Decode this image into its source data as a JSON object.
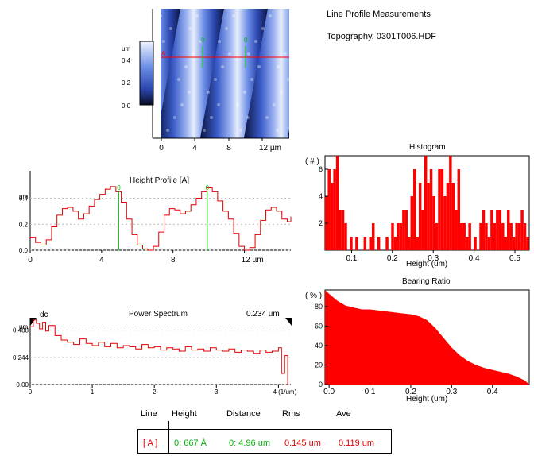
{
  "header": {
    "title": "Line Profile Measurements",
    "subtitle": "Topography,  0301T006.HDF"
  },
  "afm_image": {
    "colorbar_unit": "um",
    "colorbar_ticks": [
      "0.4",
      "0.2",
      "0.0"
    ],
    "x_ticks": [
      "0",
      "4",
      "8",
      "12 µm"
    ],
    "line_label": "A",
    "cursor_label": "0",
    "colors": {
      "dark": "#0b1440",
      "mid": "#4a6fd6",
      "light": "#e8eefc"
    }
  },
  "height_profile": {
    "title": "Height Profile [A]",
    "y_unit": "um",
    "cursor_label": "0",
    "chart_data": {
      "type": "line",
      "xlabel": "",
      "ylabel": "um",
      "xlim": [
        0,
        14.6
      ],
      "ylim": [
        0,
        0.55
      ],
      "x_ticks": [
        "0",
        "4",
        "8",
        "12 µm"
      ],
      "y_ticks": [
        "0.4",
        "0.2",
        "0.0"
      ],
      "cursors_x": [
        4.96,
        9.92
      ],
      "x": [
        0,
        0.3,
        0.6,
        0.9,
        1.2,
        1.5,
        1.8,
        2.1,
        2.4,
        2.7,
        3.0,
        3.3,
        3.6,
        3.9,
        4.2,
        4.5,
        4.8,
        5.1,
        5.4,
        5.7,
        6.0,
        6.3,
        6.6,
        6.9,
        7.2,
        7.5,
        7.8,
        8.1,
        8.4,
        8.7,
        9.0,
        9.3,
        9.6,
        9.9,
        10.2,
        10.5,
        10.8,
        11.1,
        11.4,
        11.7,
        12.0,
        12.3,
        12.6,
        12.9,
        13.2,
        13.5,
        13.8,
        14.1,
        14.4,
        14.6
      ],
      "y": [
        0.1,
        0.06,
        0.04,
        0.08,
        0.18,
        0.27,
        0.32,
        0.33,
        0.3,
        0.24,
        0.28,
        0.34,
        0.39,
        0.43,
        0.47,
        0.49,
        0.45,
        0.37,
        0.24,
        0.12,
        0.04,
        0.01,
        0.0,
        0.03,
        0.14,
        0.27,
        0.32,
        0.31,
        0.28,
        0.3,
        0.35,
        0.4,
        0.45,
        0.48,
        0.45,
        0.38,
        0.3,
        0.24,
        0.13,
        0.03,
        0.0,
        0.02,
        0.12,
        0.23,
        0.31,
        0.33,
        0.3,
        0.24,
        0.22,
        0.26
      ]
    }
  },
  "histogram": {
    "title": "Histogram",
    "chart_data": {
      "type": "bar",
      "xlabel": "Height (um)",
      "ylabel": "( # )",
      "xlim": [
        0.035,
        0.535
      ],
      "ylim": [
        0,
        7
      ],
      "x_ticks": [
        "0.1",
        "0.2",
        "0.3",
        "0.4",
        "0.5"
      ],
      "y_ticks": [
        "6",
        "4",
        "2"
      ],
      "bin_start": 0.035,
      "bin_width": 0.00675,
      "values": [
        4,
        6,
        5,
        6,
        7,
        3,
        3,
        2,
        0,
        1,
        0,
        1,
        0,
        0,
        1,
        0,
        1,
        2,
        0,
        1,
        0,
        0,
        1,
        0,
        2,
        1,
        2,
        2,
        3,
        3,
        1,
        4,
        6,
        1,
        5,
        3,
        7,
        5,
        6,
        4,
        2,
        6,
        6,
        4,
        5,
        7,
        5,
        3,
        6,
        2,
        2,
        1,
        2,
        0,
        1,
        0,
        2,
        3,
        2,
        1,
        3,
        2,
        3,
        3,
        2,
        1,
        3,
        2,
        1,
        2,
        2,
        3,
        2,
        1
      ]
    }
  },
  "bearing_ratio": {
    "title": "Bearing Ratio",
    "chart_data": {
      "type": "area",
      "xlabel": "Height (um)",
      "ylabel": "( % )",
      "xlim": [
        -0.01,
        0.49
      ],
      "ylim": [
        0,
        97
      ],
      "x_ticks": [
        "0.0",
        "0.1",
        "0.2",
        "0.3",
        "0.4"
      ],
      "y_ticks": [
        "80",
        "60",
        "40",
        "20",
        "0"
      ],
      "x": [
        -0.01,
        0.0,
        0.02,
        0.04,
        0.06,
        0.08,
        0.1,
        0.12,
        0.14,
        0.16,
        0.18,
        0.2,
        0.22,
        0.24,
        0.26,
        0.28,
        0.3,
        0.32,
        0.34,
        0.36,
        0.38,
        0.4,
        0.42,
        0.44,
        0.46,
        0.48,
        0.49
      ],
      "y": [
        97,
        93,
        86,
        81,
        79,
        77,
        77,
        76,
        75,
        74,
        73,
        72,
        70,
        66,
        58,
        48,
        38,
        30,
        24,
        20,
        17,
        15,
        13,
        11,
        8,
        4,
        0
      ]
    }
  },
  "power_spectrum": {
    "title": "Power Spectrum",
    "value_label": "0.234 um",
    "dc_label": "dc",
    "y_unit": "um",
    "chart_data": {
      "type": "line",
      "xlabel": "",
      "ylabel": "um",
      "xlim": [
        0,
        4.2
      ],
      "ylim": [
        0,
        0.6
      ],
      "x_ticks": [
        "0",
        "1",
        "2",
        "3",
        "4 (1/um)"
      ],
      "y_ticks": [
        "0.488",
        "0.244",
        "0.00"
      ],
      "x": [
        0.0,
        0.05,
        0.1,
        0.15,
        0.2,
        0.25,
        0.3,
        0.4,
        0.5,
        0.6,
        0.7,
        0.8,
        0.9,
        1.0,
        1.1,
        1.2,
        1.3,
        1.4,
        1.5,
        1.6,
        1.7,
        1.8,
        1.9,
        2.0,
        2.1,
        2.2,
        2.3,
        2.4,
        2.5,
        2.6,
        2.7,
        2.8,
        2.9,
        3.0,
        3.1,
        3.2,
        3.3,
        3.4,
        3.5,
        3.6,
        3.7,
        3.8,
        3.9,
        4.0,
        4.05,
        4.1,
        4.15
      ],
      "y": [
        0.52,
        0.58,
        0.55,
        0.5,
        0.56,
        0.48,
        0.53,
        0.44,
        0.4,
        0.38,
        0.36,
        0.41,
        0.37,
        0.35,
        0.38,
        0.34,
        0.37,
        0.33,
        0.35,
        0.34,
        0.32,
        0.36,
        0.33,
        0.34,
        0.31,
        0.33,
        0.32,
        0.3,
        0.34,
        0.31,
        0.32,
        0.3,
        0.33,
        0.31,
        0.3,
        0.32,
        0.29,
        0.31,
        0.3,
        0.28,
        0.31,
        0.29,
        0.3,
        0.33,
        0.1,
        0.26,
        0.0
      ]
    }
  },
  "results": {
    "headers": [
      "Line",
      "Height",
      "Distance",
      "Rms",
      "Ave"
    ],
    "row": {
      "line": "[ A ]",
      "height": "0:  667 Å",
      "distance": "0:  4.96 um",
      "rms": "0.145 um",
      "ave": "0.119 um"
    },
    "colors": {
      "red": "#e00000",
      "green": "#00b000"
    }
  }
}
